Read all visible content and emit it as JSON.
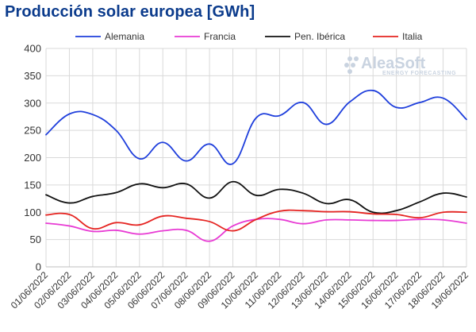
{
  "chart_data": {
    "type": "line",
    "title": "Producción solar europea [GWh]",
    "xlabel": "",
    "ylabel": "",
    "ylim": [
      0,
      400
    ],
    "y_ticks": [
      0,
      50,
      100,
      150,
      200,
      250,
      300,
      350,
      400
    ],
    "grid": true,
    "legend_position": "top",
    "categories": [
      "01/06/2022",
      "02/06/2022",
      "03/06/2022",
      "04/06/2022",
      "05/06/2022",
      "06/06/2022",
      "07/06/2022",
      "08/06/2022",
      "09/06/2022",
      "10/06/2022",
      "11/06/2022",
      "12/06/2022",
      "13/06/2022",
      "14/06/2022",
      "15/06/2022",
      "16/06/2022",
      "17/06/2022",
      "18/06/2022",
      "19/06/2022"
    ],
    "series": [
      {
        "name": "Alemania",
        "color": "#1f3fdc",
        "values": [
          242,
          280,
          279,
          250,
          198,
          228,
          194,
          225,
          189,
          273,
          277,
          301,
          261,
          302,
          323,
          292,
          301,
          309,
          270
        ]
      },
      {
        "name": "Francia",
        "color": "#e83bd4",
        "values": [
          80,
          75,
          65,
          67,
          60,
          66,
          67,
          47,
          75,
          87,
          87,
          79,
          86,
          86,
          85,
          85,
          87,
          86,
          80
        ]
      },
      {
        "name": "Pen. Ibérica",
        "color": "#111111",
        "values": [
          132,
          117,
          129,
          136,
          152,
          145,
          152,
          126,
          156,
          131,
          142,
          135,
          116,
          123,
          100,
          103,
          119,
          135,
          128
        ]
      },
      {
        "name": "Italia",
        "color": "#e52421",
        "values": [
          95,
          96,
          70,
          81,
          77,
          93,
          89,
          83,
          66,
          87,
          102,
          103,
          101,
          101,
          97,
          96,
          90,
          100,
          100
        ]
      }
    ]
  },
  "watermark": {
    "brand": "AleaSoft",
    "tagline": "ENERGY FORECASTING"
  }
}
